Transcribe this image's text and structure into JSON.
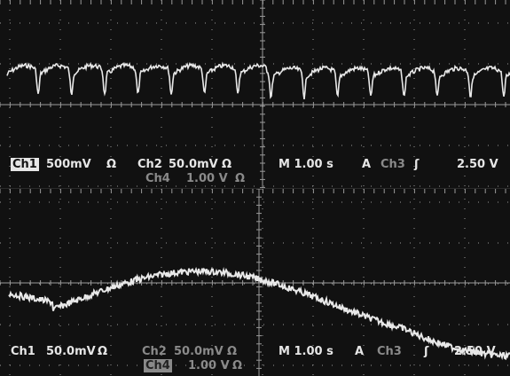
{
  "top_panel": {
    "readout_line1": {
      "ch1_label": "Ch1",
      "ch1_scale": "500mV",
      "ch1_unit": "Ω",
      "ch2_label": "Ch2",
      "ch2_scale": "50.0mV",
      "ch2_unit": "Ω",
      "time_base": "M 1.00 s",
      "trigger_mode": "A",
      "trigger_source": "Ch3",
      "trigger_slope": "ʃ",
      "trigger_level": "2.50 V"
    },
    "readout_line2": {
      "ch4_label": "Ch4",
      "ch4_scale": "1.00 V",
      "ch4_unit": "Ω"
    }
  },
  "bottom_panel": {
    "readout_line1": {
      "ch1_label": "Ch1",
      "ch1_scale": "50.0mV",
      "ch1_unit": "Ω",
      "ch2_label": "Ch2",
      "ch2_scale": "50.0mV",
      "ch2_unit": "Ω",
      "time_base": "M 1.00 s",
      "trigger_mode": "A",
      "trigger_source": "Ch3",
      "trigger_slope": "ʃ",
      "trigger_level": "2.50 V"
    },
    "readout_line2": {
      "ch4_label": "Ch4",
      "ch4_scale": "1.00 V",
      "ch4_unit": "Ω"
    }
  },
  "colors": {
    "background": "#111111",
    "grid": "#9a9a9a",
    "trace": "#e8e8e8",
    "readout": "#e6e6e6",
    "dim_readout": "#8a8a8a"
  }
}
